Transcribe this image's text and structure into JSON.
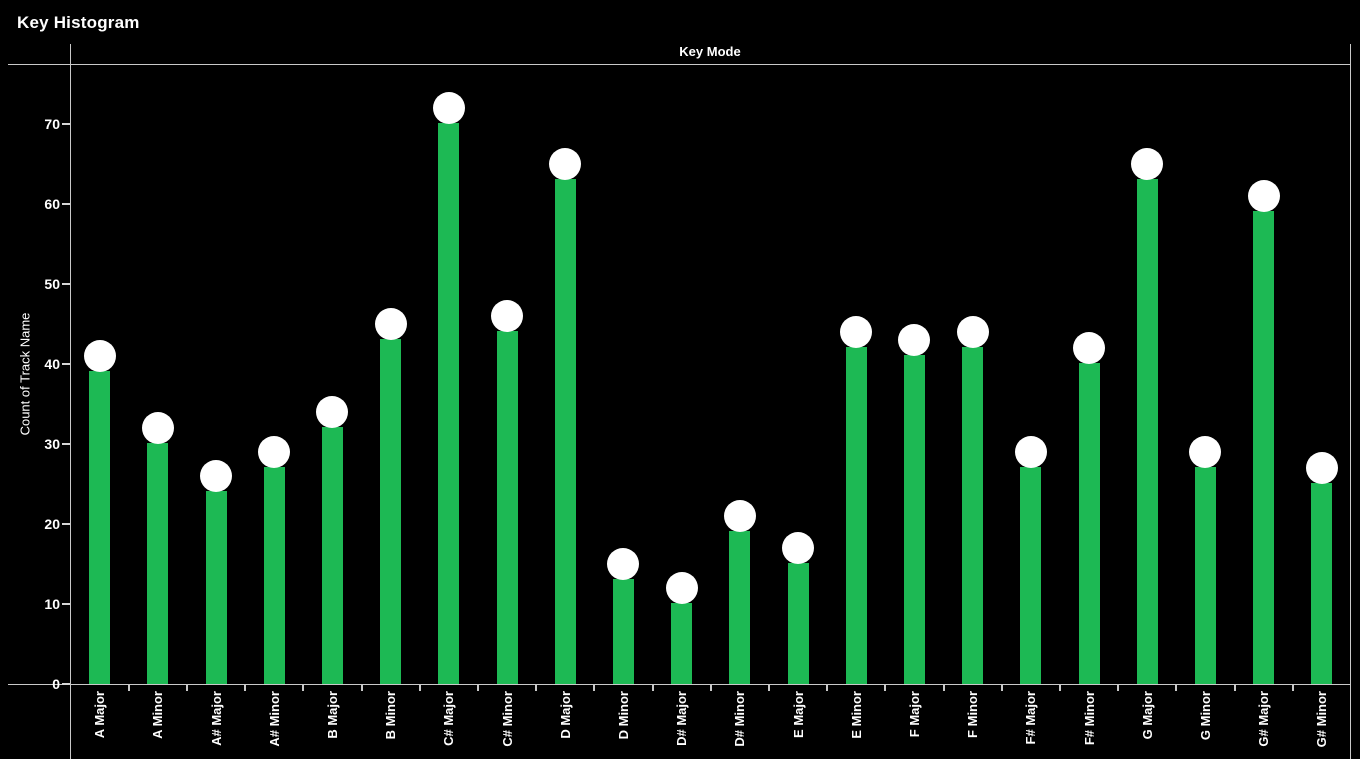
{
  "panel": {
    "title": "Key Histogram"
  },
  "chart_data": {
    "type": "bar",
    "title": "Key Histogram",
    "top_axis_label": "Key Mode",
    "xlabel": "Key Mode",
    "ylabel": "Count of Track Name",
    "categories": [
      "A Major",
      "A Minor",
      "A# Major",
      "A# Minor",
      "B Major",
      "B Minor",
      "C# Major",
      "C# Minor",
      "D Major",
      "D Minor",
      "D# Major",
      "D# Minor",
      "E Major",
      "E Minor",
      "F Major",
      "F Minor",
      "F# Major",
      "F# Minor",
      "G Major",
      "G Minor",
      "G# Major",
      "G# Minor"
    ],
    "values": [
      41,
      32,
      26,
      29,
      34,
      45,
      72,
      46,
      65,
      15,
      12,
      21,
      17,
      44,
      43,
      44,
      29,
      42,
      65,
      29,
      61,
      27
    ],
    "yticks": [
      0,
      10,
      20,
      30,
      40,
      50,
      60,
      70
    ],
    "ylim": [
      0,
      77.5
    ],
    "grid": false,
    "legend_position": "none",
    "marker_style": "circle-cap",
    "colors": {
      "background": "#000000",
      "bar": "#1DB954",
      "marker": "#FFFFFF",
      "axis": "#C9C9C9",
      "text": "#FFFFFF"
    }
  }
}
